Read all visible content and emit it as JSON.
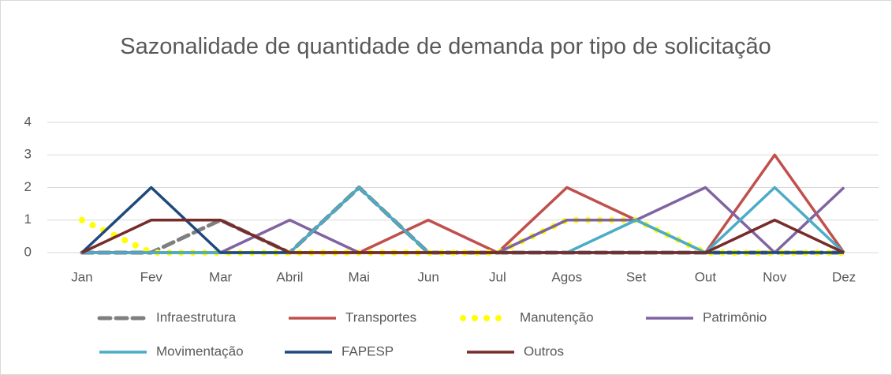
{
  "chart_data": {
    "type": "line",
    "title": "Sazonalidade de quantidade de demanda por tipo de solicitação",
    "categories": [
      "Jan",
      "Fev",
      "Mar",
      "Abril",
      "Mai",
      "Jun",
      "Jul",
      "Agos",
      "Set",
      "Out",
      "Nov",
      "Dez"
    ],
    "series": [
      {
        "name": "Infraestrutura",
        "color": "#7f7f7f",
        "style": "dashed",
        "values": [
          0,
          0,
          1,
          0,
          2,
          0,
          0,
          0,
          0,
          0,
          0,
          0
        ]
      },
      {
        "name": "Transportes",
        "color": "#c0504d",
        "style": "solid",
        "values": [
          0,
          0,
          0,
          0,
          0,
          1,
          0,
          2,
          1,
          0,
          3,
          0
        ]
      },
      {
        "name": "Manutenção",
        "color": "#ffff00",
        "style": "dotted",
        "values": [
          1,
          0,
          0,
          0,
          0,
          0,
          0,
          1,
          1,
          0,
          0,
          0
        ]
      },
      {
        "name": "Patrimônio",
        "color": "#8064a2",
        "style": "solid",
        "values": [
          0,
          0,
          0,
          1,
          0,
          0,
          0,
          1,
          1,
          2,
          0,
          2
        ]
      },
      {
        "name": "Movimentação",
        "color": "#4bacc6",
        "style": "solid",
        "values": [
          0,
          0,
          0,
          0,
          2,
          0,
          0,
          0,
          1,
          0,
          2,
          0
        ]
      },
      {
        "name": "FAPESP",
        "color": "#1f497d",
        "style": "solid",
        "values": [
          0,
          2,
          0,
          0,
          0,
          0,
          0,
          0,
          0,
          0,
          0,
          0
        ]
      },
      {
        "name": "Outros",
        "color": "#772c2a",
        "style": "solid",
        "values": [
          0,
          1,
          1,
          0,
          0,
          0,
          0,
          0,
          0,
          0,
          1,
          0
        ]
      }
    ],
    "ylim": [
      0,
      4
    ],
    "yticks": [
      0,
      1,
      2,
      3,
      4
    ],
    "grid": true,
    "legend": "bottom"
  }
}
